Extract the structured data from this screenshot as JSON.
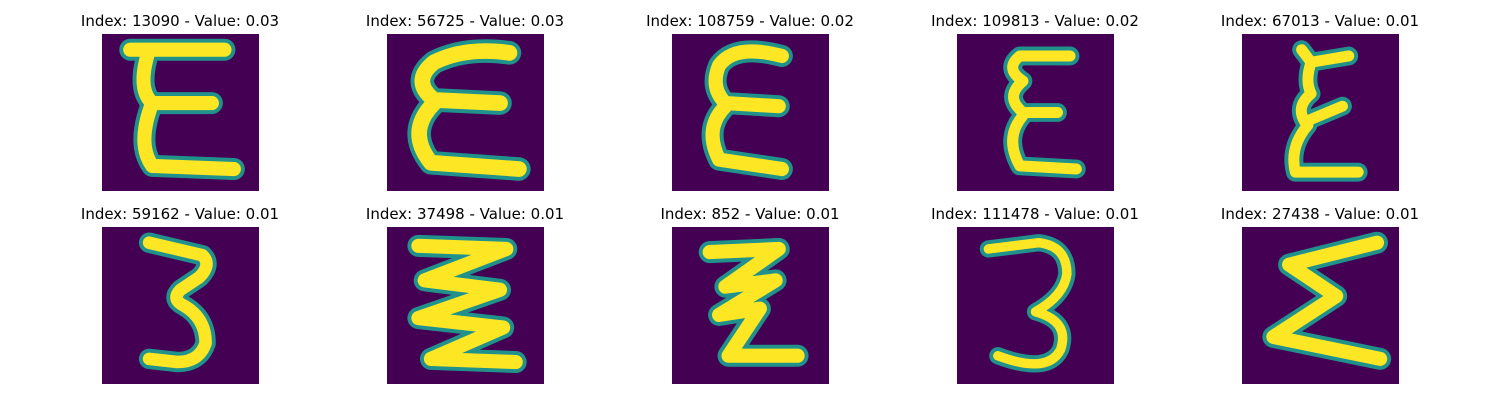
{
  "colors": {
    "background": "#440154",
    "stroke": "#fde725",
    "halo": "#21918c"
  },
  "panels": [
    {
      "title": "Index: 13090 - Value: 0.03",
      "glyph": "epsilon-glyph"
    },
    {
      "title": "Index: 56725 - Value: 0.03",
      "glyph": "epsilon-glyph"
    },
    {
      "title": "Index: 108759 - Value: 0.02",
      "glyph": "epsilon-glyph"
    },
    {
      "title": "Index: 109813 - Value: 0.02",
      "glyph": "epsilon-glyph"
    },
    {
      "title": "Index: 67013 - Value: 0.01",
      "glyph": "epsilon-glyph"
    },
    {
      "title": "Index: 59162 - Value: 0.01",
      "glyph": "three-glyph"
    },
    {
      "title": "Index: 37498 - Value: 0.01",
      "glyph": "zigzag-glyph"
    },
    {
      "title": "Index: 852 - Value: 0.01",
      "glyph": "zigzag-glyph"
    },
    {
      "title": "Index: 111478 - Value: 0.01",
      "glyph": "three-glyph"
    },
    {
      "title": "Index: 27438 - Value: 0.01",
      "glyph": "sigma-glyph"
    }
  ]
}
